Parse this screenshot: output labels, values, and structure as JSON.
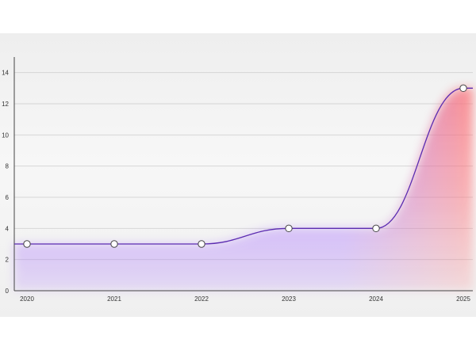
{
  "chart_data": {
    "type": "area",
    "title": "",
    "xlabel": "",
    "ylabel": "",
    "x": [
      "2020",
      "2021",
      "2022",
      "2023",
      "2024",
      "2025"
    ],
    "series": [
      {
        "values": [
          3,
          3,
          3,
          4,
          4,
          13
        ]
      }
    ],
    "ylim": [
      0,
      15
    ],
    "yticks": [
      0,
      2,
      4,
      6,
      8,
      10,
      12,
      14
    ],
    "grid": true,
    "legend": "none",
    "colors": {
      "line": "#5b2bb0",
      "fill_low": "#a46bff",
      "fill_high": "#ff6f6f",
      "grid": "#d6d6d6",
      "axis": "#444444",
      "marker_fill": "#ffffff",
      "marker_stroke": "#444444"
    }
  }
}
